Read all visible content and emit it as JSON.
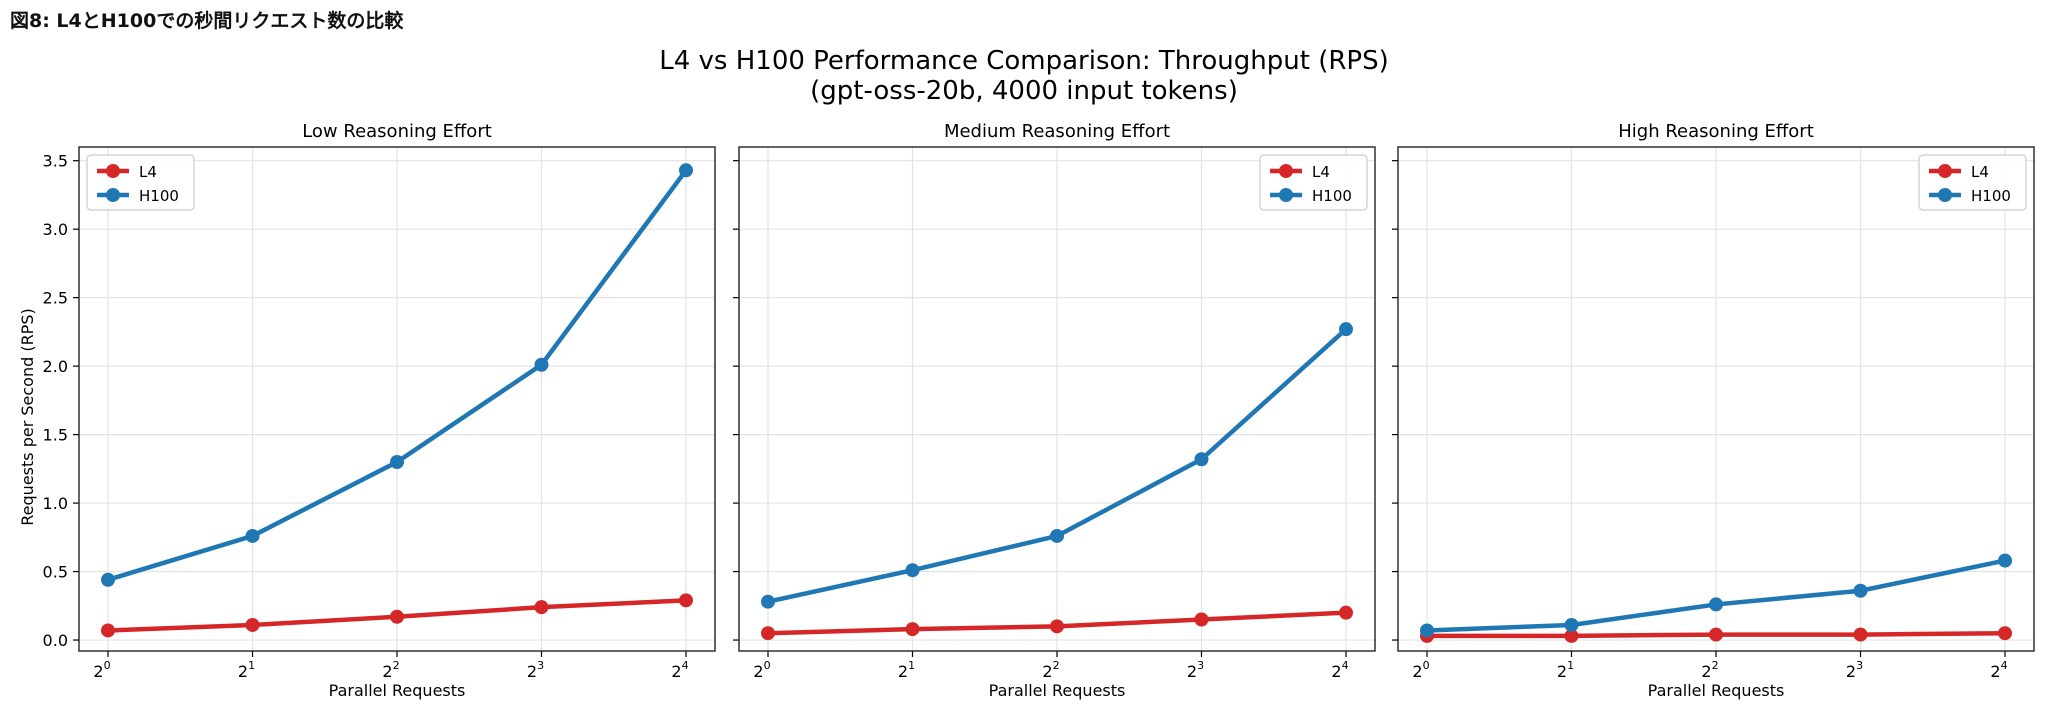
{
  "caption": "図8: L4とH100での秒間リクエスト数の比較",
  "chart_data": {
    "type": "line",
    "title": "L4 vs H100 Performance Comparison: Throughput (RPS)",
    "subtitle": "(gpt-oss-20b, 4000 input tokens)",
    "ylabel": "Requests per Second (RPS)",
    "xlabel": "Parallel Requests",
    "x": [
      1,
      2,
      4,
      8,
      16
    ],
    "x_tick_labels": [
      {
        "base": "2",
        "exp": "0"
      },
      {
        "base": "2",
        "exp": "1"
      },
      {
        "base": "2",
        "exp": "2"
      },
      {
        "base": "2",
        "exp": "3"
      },
      {
        "base": "2",
        "exp": "4"
      }
    ],
    "x_scale": "log2",
    "ylim": [
      -0.08,
      3.6
    ],
    "y_ticks": [
      "0.0",
      "0.5",
      "1.0",
      "1.5",
      "2.0",
      "2.5",
      "3.0",
      "3.5"
    ],
    "grid": true,
    "colors": {
      "L4": "#d62728",
      "H100": "#1f77b4"
    },
    "panels": [
      {
        "title": "Low Reasoning Effort",
        "legend": "upper-left",
        "series": [
          {
            "name": "L4",
            "values": [
              0.07,
              0.11,
              0.17,
              0.24,
              0.29
            ]
          },
          {
            "name": "H100",
            "values": [
              0.44,
              0.76,
              1.3,
              2.01,
              3.43
            ]
          }
        ]
      },
      {
        "title": "Medium Reasoning Effort",
        "legend": "upper-right",
        "series": [
          {
            "name": "L4",
            "values": [
              0.05,
              0.08,
              0.1,
              0.15,
              0.2
            ]
          },
          {
            "name": "H100",
            "values": [
              0.28,
              0.51,
              0.76,
              1.32,
              2.27
            ]
          }
        ]
      },
      {
        "title": "High Reasoning Effort",
        "legend": "upper-right",
        "series": [
          {
            "name": "L4",
            "values": [
              0.03,
              0.03,
              0.04,
              0.04,
              0.05
            ]
          },
          {
            "name": "H100",
            "values": [
              0.07,
              0.11,
              0.26,
              0.36,
              0.58
            ]
          }
        ]
      }
    ]
  }
}
